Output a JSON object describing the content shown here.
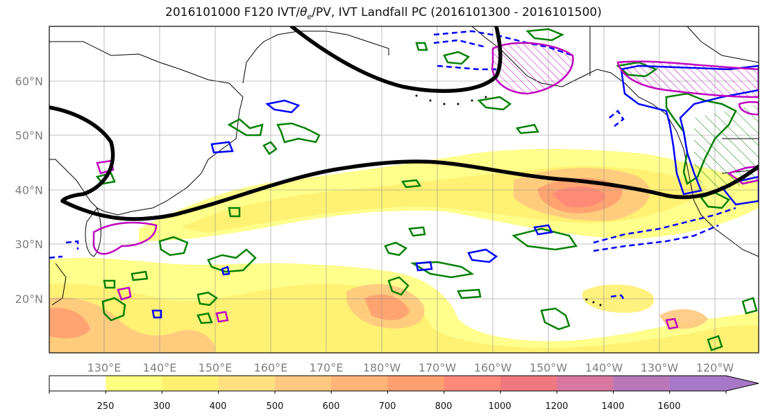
{
  "title": {
    "prefix": "2016101000 F120 IVT/",
    "theta": "θ",
    "theta_sub": "e",
    "suffix": "/PV, IVT Landfall PC (2016101300 - 2016101500)"
  },
  "map": {
    "lon_labels": [
      "130°E",
      "140°E",
      "150°E",
      "160°E",
      "170°E",
      "180°W",
      "170°W",
      "160°W",
      "150°W",
      "140°W",
      "130°W",
      "120°W"
    ],
    "lat_labels": [
      "60°N",
      "50°N",
      "40°N",
      "30°N",
      "20°N"
    ]
  },
  "colorbar": {
    "labels": [
      "250",
      "300",
      "400",
      "500",
      "600",
      "700",
      "800",
      "1000",
      "1200",
      "1400",
      "1600"
    ],
    "colors": [
      "#ffffff",
      "#ffff80",
      "#fff070",
      "#ffe080",
      "#ffc880",
      "#ffb478",
      "#ffa070",
      "#ff8878",
      "#f07880",
      "#d878a0",
      "#b878b8",
      "#a878c8"
    ]
  },
  "contour_colors": {
    "jet": "#000000",
    "theta_e": "#008000",
    "pv_positive": "#0000ff",
    "pv_negative": "#0000ff",
    "landfall_pc": "#c000c0"
  }
}
